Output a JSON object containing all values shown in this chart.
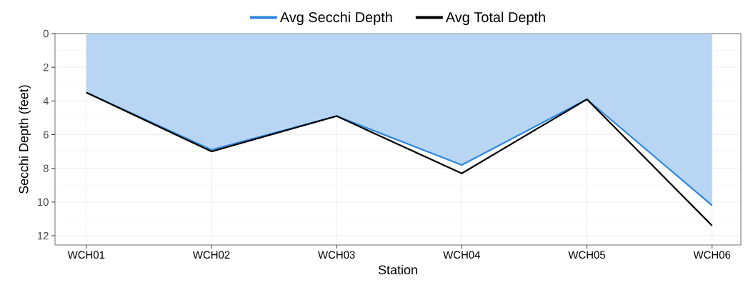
{
  "chart_data": {
    "type": "line",
    "xlabel": "Station",
    "ylabel": "Secchi Depth (feet)",
    "categories": [
      "WCH01",
      "WCH02",
      "WCH03",
      "WCH04",
      "WCH05",
      "WCH06"
    ],
    "series": [
      {
        "name": "Avg Secchi Depth",
        "type": "area",
        "color": "#2e86de",
        "values": [
          3.5,
          6.9,
          4.9,
          7.8,
          3.9,
          10.2
        ]
      },
      {
        "name": "Avg Total Depth",
        "color": "#000000",
        "values": [
          3.5,
          7.0,
          4.9,
          8.3,
          3.9,
          11.4
        ]
      }
    ],
    "ylim": [
      12.55,
      0
    ],
    "yticks": [
      0,
      2,
      4,
      6,
      8,
      10,
      12
    ],
    "grid": true,
    "legend": "top"
  }
}
